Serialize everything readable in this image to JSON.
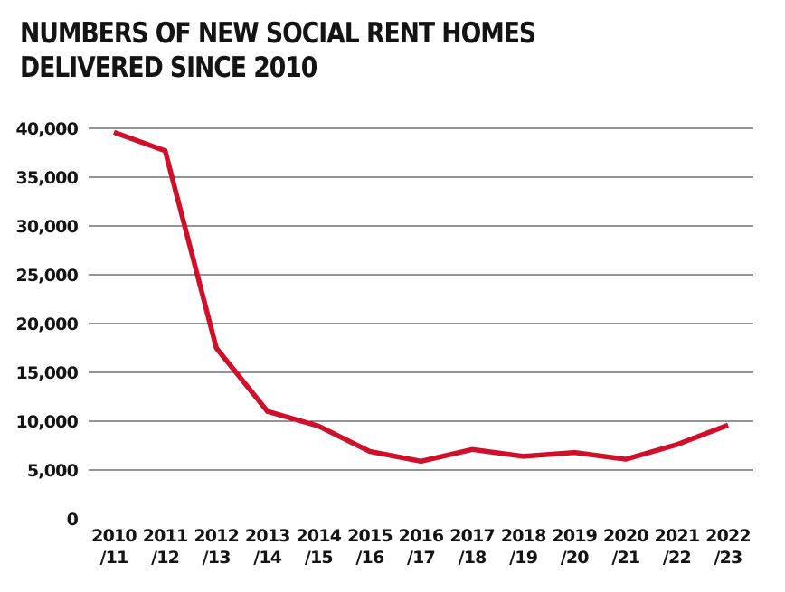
{
  "chart_data": {
    "type": "line",
    "title_lines": [
      "NUMBERS OF NEW SOCIAL RENT HOMES",
      "DELIVERED SINCE 2010"
    ],
    "categories": [
      [
        "2010",
        "/11"
      ],
      [
        "2011",
        "/12"
      ],
      [
        "2012",
        "/13"
      ],
      [
        "2013",
        "/14"
      ],
      [
        "2014",
        "/15"
      ],
      [
        "2015",
        "/16"
      ],
      [
        "2016",
        "/17"
      ],
      [
        "2017",
        "/18"
      ],
      [
        "2018",
        "/19"
      ],
      [
        "2019",
        "/20"
      ],
      [
        "2020",
        "/21"
      ],
      [
        "2021",
        "/22"
      ],
      [
        "2022",
        "/23"
      ]
    ],
    "series": [
      {
        "values": [
          39600,
          37700,
          17500,
          11000,
          9500,
          6900,
          5900,
          7100,
          6400,
          6800,
          6100,
          7600,
          9600
        ]
      }
    ],
    "yticks": [
      {
        "value": 0,
        "label": "0"
      },
      {
        "value": 5000,
        "label": "5,000"
      },
      {
        "value": 10000,
        "label": "10,000"
      },
      {
        "value": 15000,
        "label": "15,000"
      },
      {
        "value": 20000,
        "label": "20,000"
      },
      {
        "value": 25000,
        "label": "25,000"
      },
      {
        "value": 30000,
        "label": "30,000"
      },
      {
        "value": 35000,
        "label": "35,000"
      },
      {
        "value": 40000,
        "label": "40,000"
      }
    ],
    "ylim": [
      0,
      40000
    ],
    "grid": true,
    "line_color": "#d0102b",
    "grid_color": "#2a2a2a"
  }
}
